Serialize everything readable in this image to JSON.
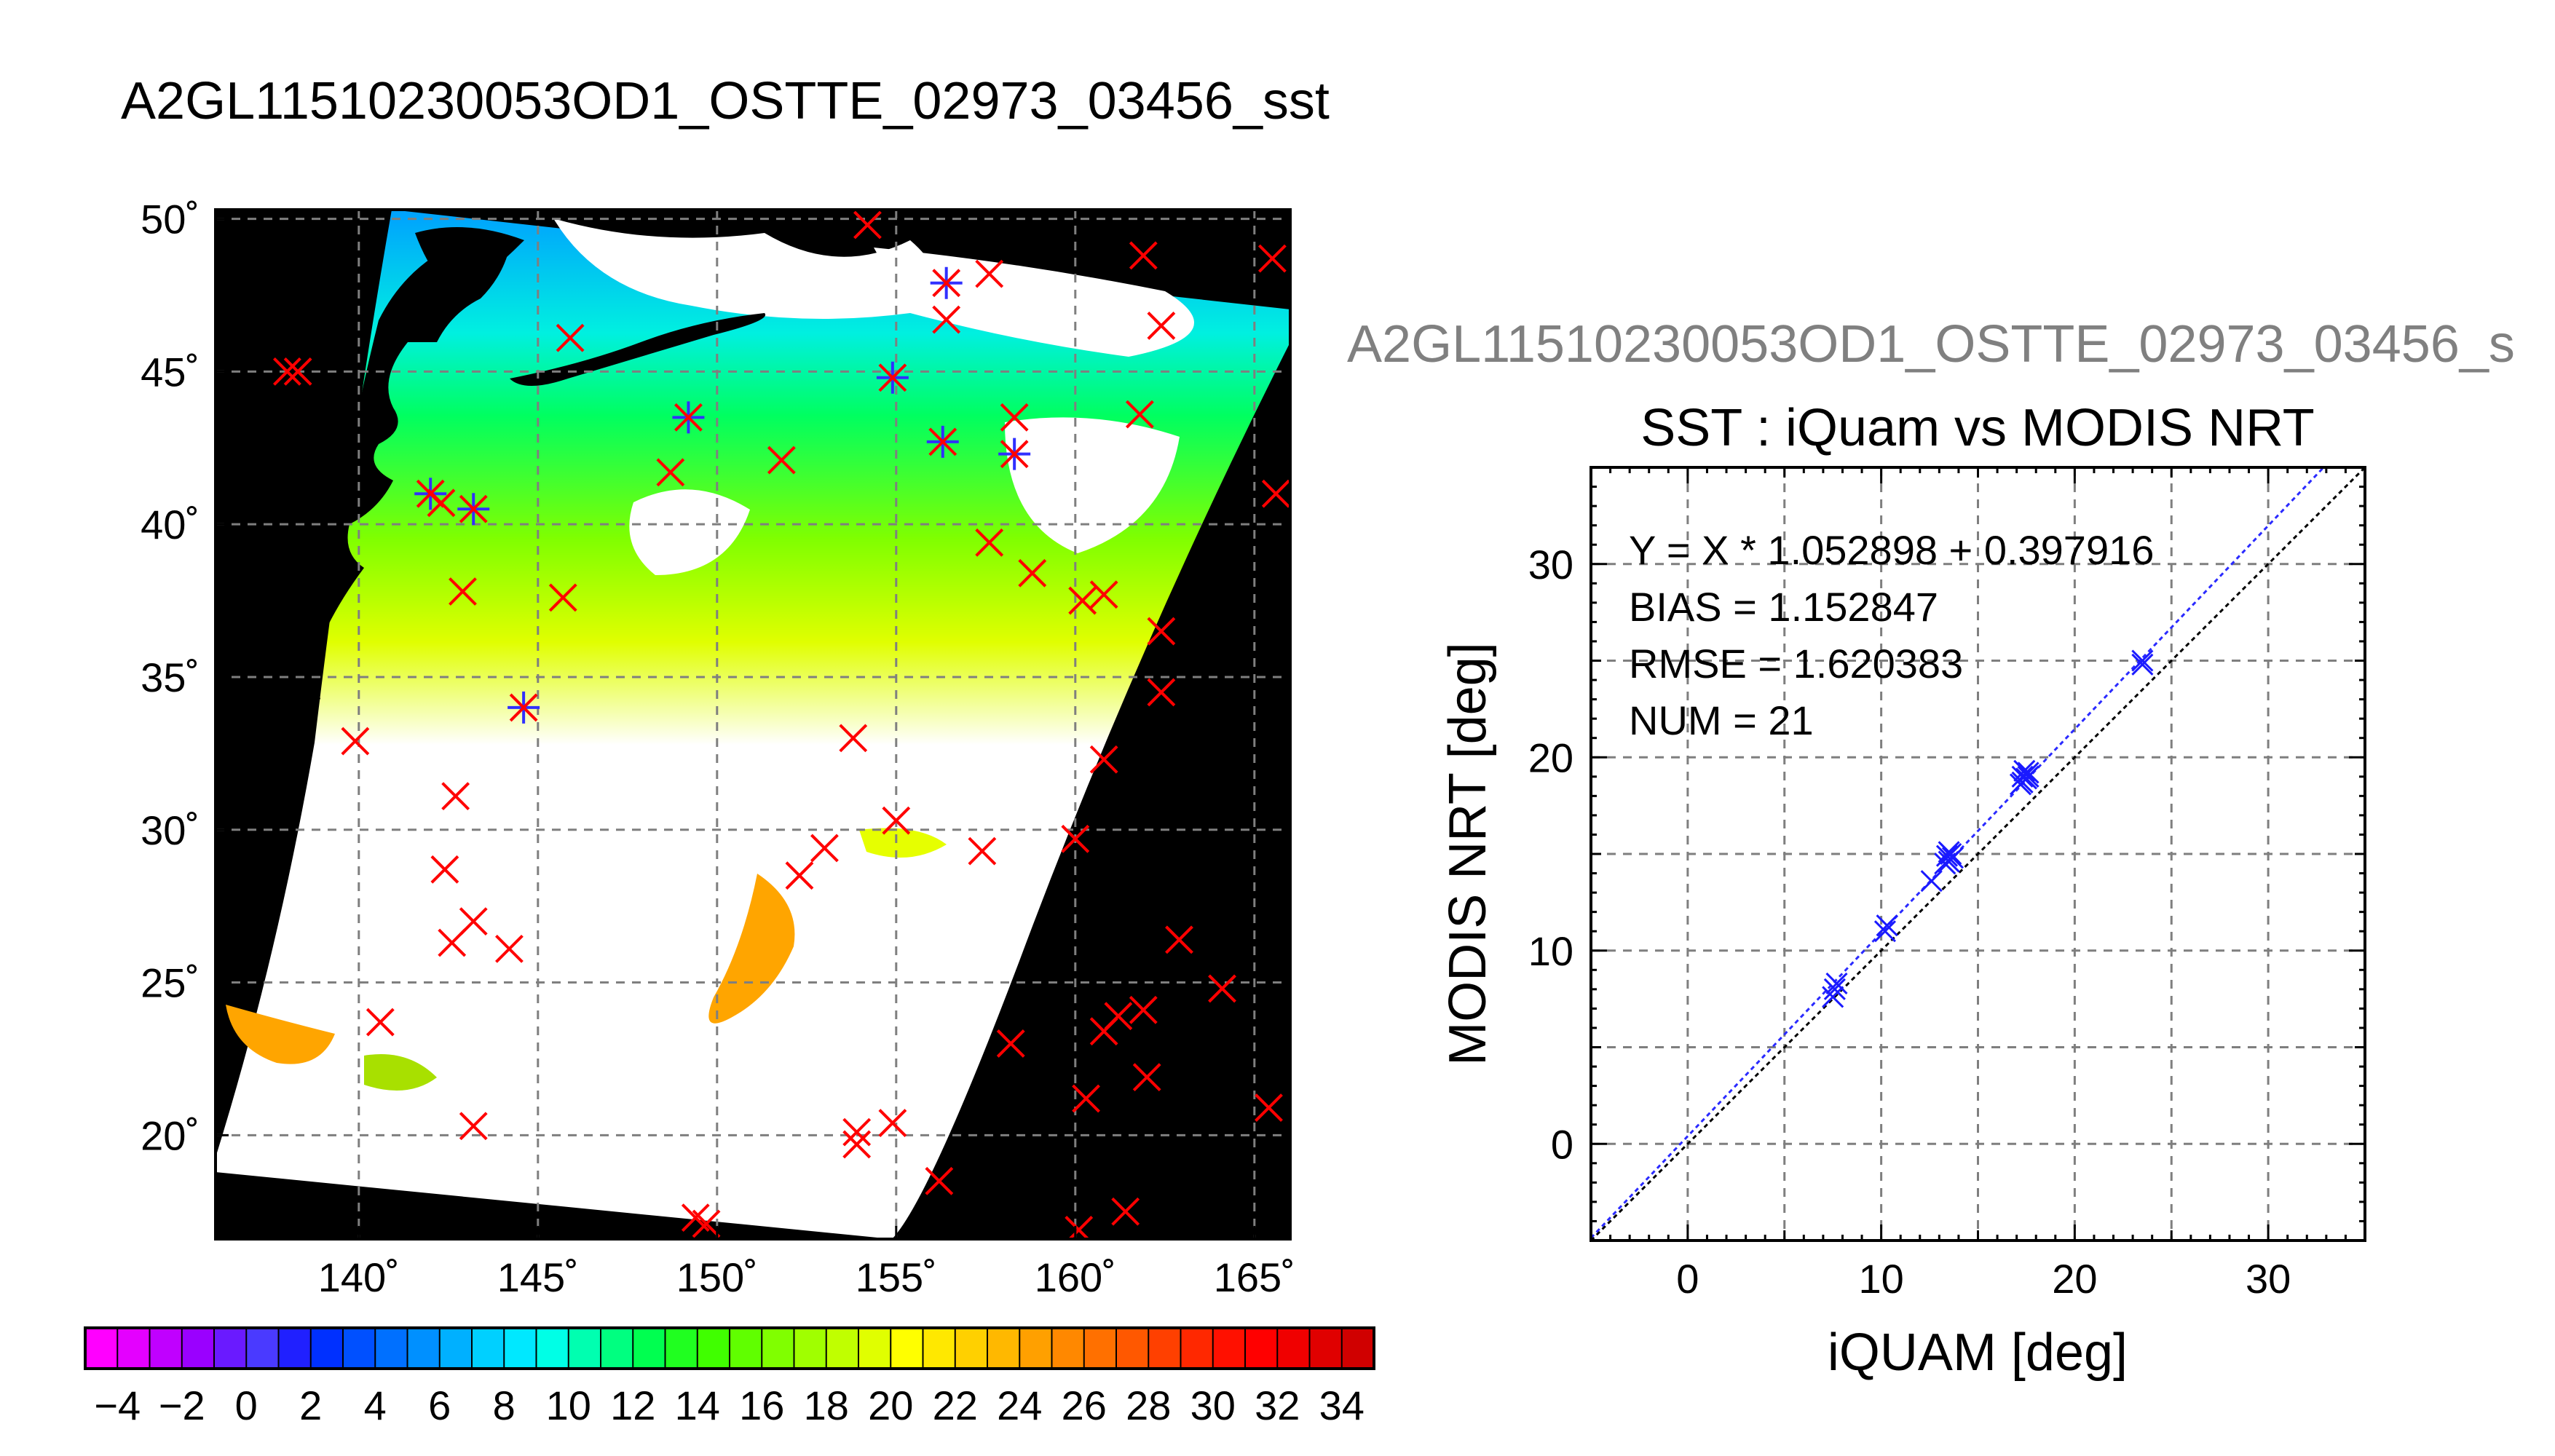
{
  "figure": {
    "title": "A2GL11510230053OD1_OSTTE_02973_03456_sst",
    "scatter_title_clipped": "A2GL11510230053OD1_OSTTE_02973_03456_s"
  },
  "colors": {
    "land": "#000000",
    "grid": "#7f7f7f",
    "marker_primary": "#ff0000",
    "marker_secondary": "#3030ff",
    "scatter_points": "#1a1aff",
    "fit_line": "#2a2aff",
    "identity_line": "#000000"
  },
  "chart_data": [
    {
      "type": "map",
      "name": "sst_map",
      "title": "",
      "lon_range": [
        136,
        166
      ],
      "lat_range": [
        16.6,
        50.3
      ],
      "lon_ticks": [
        "140˚",
        "145˚",
        "150˚",
        "155˚",
        "160˚",
        "165˚"
      ],
      "lon_tick_values": [
        140,
        145,
        150,
        155,
        160,
        165
      ],
      "lat_ticks": [
        "50˚",
        "45˚",
        "40˚",
        "35˚",
        "30˚",
        "25˚",
        "20˚"
      ],
      "lat_tick_values": [
        50,
        45,
        40,
        35,
        30,
        25,
        20
      ],
      "grid": true,
      "colorbar": {
        "min": -5,
        "max": 35,
        "step": 1,
        "tick_labels": [
          "−4",
          "−2",
          "0",
          "2",
          "4",
          "6",
          "8",
          "10",
          "12",
          "14",
          "16",
          "18",
          "20",
          "22",
          "24",
          "26",
          "28",
          "30",
          "32",
          "34"
        ],
        "tick_values": [
          -4,
          -2,
          0,
          2,
          4,
          6,
          8,
          10,
          12,
          14,
          16,
          18,
          20,
          22,
          24,
          26,
          28,
          30,
          32,
          34
        ],
        "colors": [
          "#ff00ff",
          "#e400ff",
          "#c000ff",
          "#9a00ff",
          "#6a1aff",
          "#4a3aff",
          "#2020ff",
          "#0030ff",
          "#0050ff",
          "#0070ff",
          "#0090ff",
          "#00b0ff",
          "#00d0ff",
          "#00e8ff",
          "#00ffe6",
          "#00ffb0",
          "#00ff80",
          "#00ff50",
          "#20ff20",
          "#40ff00",
          "#60ff00",
          "#80ff00",
          "#a0ff00",
          "#c0ff00",
          "#e0ff00",
          "#ffff00",
          "#ffe800",
          "#ffd000",
          "#ffb800",
          "#ffa000",
          "#ff8800",
          "#ff7000",
          "#ff5800",
          "#ff4000",
          "#ff2800",
          "#ff1000",
          "#ff0000",
          "#f00000",
          "#e00000",
          "#d00000"
        ]
      },
      "in_situ_points": [
        {
          "lon": 138.0,
          "lat": 45.0
        },
        {
          "lon": 138.3,
          "lat": 45.0
        },
        {
          "lon": 142.0,
          "lat": 41.0,
          "match": true
        },
        {
          "lon": 142.3,
          "lat": 40.7
        },
        {
          "lon": 143.2,
          "lat": 40.5,
          "match": true
        },
        {
          "lon": 142.9,
          "lat": 37.8
        },
        {
          "lon": 145.7,
          "lat": 37.6
        },
        {
          "lon": 144.6,
          "lat": 34.0,
          "match": true
        },
        {
          "lon": 139.9,
          "lat": 32.9
        },
        {
          "lon": 142.7,
          "lat": 31.1
        },
        {
          "lon": 142.4,
          "lat": 28.7
        },
        {
          "lon": 143.2,
          "lat": 27.0
        },
        {
          "lon": 142.6,
          "lat": 26.3
        },
        {
          "lon": 144.2,
          "lat": 26.1
        },
        {
          "lon": 140.6,
          "lat": 23.7
        },
        {
          "lon": 143.2,
          "lat": 20.3
        },
        {
          "lon": 145.9,
          "lat": 46.1
        },
        {
          "lon": 148.7,
          "lat": 41.7
        },
        {
          "lon": 149.2,
          "lat": 43.5,
          "match": true
        },
        {
          "lon": 151.8,
          "lat": 42.1
        },
        {
          "lon": 154.2,
          "lat": 49.8
        },
        {
          "lon": 154.9,
          "lat": 44.8,
          "match": true
        },
        {
          "lon": 156.4,
          "lat": 47.9,
          "match": true
        },
        {
          "lon": 157.6,
          "lat": 48.2
        },
        {
          "lon": 156.4,
          "lat": 46.7
        },
        {
          "lon": 156.3,
          "lat": 42.7,
          "match": true
        },
        {
          "lon": 158.3,
          "lat": 43.5
        },
        {
          "lon": 158.3,
          "lat": 42.3,
          "match": true
        },
        {
          "lon": 157.6,
          "lat": 39.4
        },
        {
          "lon": 158.8,
          "lat": 38.4
        },
        {
          "lon": 153.8,
          "lat": 33.0
        },
        {
          "lon": 155.0,
          "lat": 30.3
        },
        {
          "lon": 153.0,
          "lat": 29.4
        },
        {
          "lon": 152.3,
          "lat": 28.5
        },
        {
          "lon": 157.4,
          "lat": 29.3
        },
        {
          "lon": 160.0,
          "lat": 29.7
        },
        {
          "lon": 160.2,
          "lat": 37.5
        },
        {
          "lon": 160.8,
          "lat": 37.7
        },
        {
          "lon": 160.8,
          "lat": 32.3
        },
        {
          "lon": 162.4,
          "lat": 36.5
        },
        {
          "lon": 162.4,
          "lat": 34.5
        },
        {
          "lon": 161.8,
          "lat": 43.6
        },
        {
          "lon": 162.4,
          "lat": 46.5
        },
        {
          "lon": 161.9,
          "lat": 48.8
        },
        {
          "lon": 165.5,
          "lat": 48.7
        },
        {
          "lon": 165.6,
          "lat": 41.0
        },
        {
          "lon": 162.9,
          "lat": 26.4
        },
        {
          "lon": 164.1,
          "lat": 24.8
        },
        {
          "lon": 161.2,
          "lat": 23.9
        },
        {
          "lon": 161.9,
          "lat": 24.1
        },
        {
          "lon": 160.8,
          "lat": 23.4
        },
        {
          "lon": 158.2,
          "lat": 23.0
        },
        {
          "lon": 160.3,
          "lat": 21.2
        },
        {
          "lon": 162.0,
          "lat": 21.9
        },
        {
          "lon": 165.4,
          "lat": 20.9
        },
        {
          "lon": 153.9,
          "lat": 20.1
        },
        {
          "lon": 153.9,
          "lat": 19.7
        },
        {
          "lon": 154.9,
          "lat": 20.4
        },
        {
          "lon": 156.2,
          "lat": 18.5
        },
        {
          "lon": 149.4,
          "lat": 17.3
        },
        {
          "lon": 149.7,
          "lat": 17.1
        },
        {
          "lon": 160.1,
          "lat": 16.9
        },
        {
          "lon": 161.4,
          "lat": 17.5
        }
      ]
    },
    {
      "type": "scatter",
      "name": "iquam_vs_modis",
      "title": "SST : iQuam vs MODIS NRT",
      "xlabel": "iQUAM [deg]",
      "ylabel": "MODIS NRT [deg]",
      "xlim": [
        -5,
        35
      ],
      "ylim": [
        -5,
        35
      ],
      "x_ticks": [
        0,
        10,
        20,
        30
      ],
      "y_ticks": [
        0,
        10,
        20,
        30
      ],
      "grid": true,
      "annotations": [
        "Y = X * 1.052898 + 0.397916",
        "BIAS = 1.152847",
        "RMSE = 1.620383",
        "NUM = 21"
      ],
      "fit": {
        "slope": 1.052898,
        "intercept": 0.397916
      },
      "points": [
        {
          "x": 7.5,
          "y": 7.6
        },
        {
          "x": 7.6,
          "y": 8.0
        },
        {
          "x": 7.7,
          "y": 8.3
        },
        {
          "x": 10.2,
          "y": 11.0
        },
        {
          "x": 10.3,
          "y": 11.3
        },
        {
          "x": 12.6,
          "y": 13.6
        },
        {
          "x": 13.3,
          "y": 14.5
        },
        {
          "x": 13.4,
          "y": 14.9
        },
        {
          "x": 13.6,
          "y": 15.0
        },
        {
          "x": 13.5,
          "y": 14.6
        },
        {
          "x": 13.7,
          "y": 14.8
        },
        {
          "x": 17.2,
          "y": 18.6
        },
        {
          "x": 17.3,
          "y": 19.0
        },
        {
          "x": 17.4,
          "y": 19.3
        },
        {
          "x": 17.5,
          "y": 18.9
        },
        {
          "x": 17.6,
          "y": 19.2
        },
        {
          "x": 17.3,
          "y": 18.7
        },
        {
          "x": 17.6,
          "y": 19.0
        },
        {
          "x": 23.5,
          "y": 25.0
        },
        {
          "x": 23.5,
          "y": 24.8
        },
        {
          "x": 13.5,
          "y": 15.1
        }
      ]
    }
  ]
}
